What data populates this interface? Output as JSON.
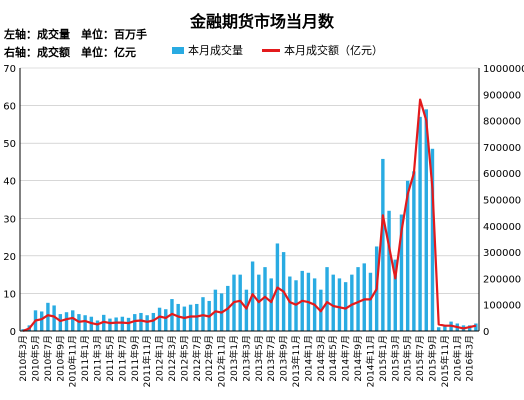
{
  "colors": {
    "bar": "#29abe2",
    "line": "#e31a1c",
    "grid": "#bfbfbf",
    "axis": "#000000"
  },
  "chart_data": {
    "type": "bar",
    "title": "金融期货市场当月数",
    "notes": [
      "左轴：成交量　单位：百万手",
      "右轴：成交额　单位：亿元"
    ],
    "legend_position": "top-right",
    "grid": true,
    "x_tick_labels": [
      "2010年3月",
      "2010年5月",
      "2010年7月",
      "2010年9月",
      "2010年11月",
      "2011年1月",
      "2011年3月",
      "2011年5月",
      "2011年7月",
      "2011年9月",
      "2011年11月",
      "2012年1月",
      "2012年3月",
      "2012年5月",
      "2012年7月",
      "2012年9月",
      "2012年11月",
      "2013年1月",
      "2013年3月",
      "2013年5月",
      "2013年7月",
      "2013年9月",
      "2013年11月",
      "2014年1月",
      "2014年3月",
      "2014年5月",
      "2014年7月",
      "2014年9月",
      "2014年11月",
      "2015年1月",
      "2015年3月",
      "2015年5月",
      "2015年7月",
      "2015年9月",
      "2015年11月",
      "2016年1月",
      "2016年3月"
    ],
    "y_left": {
      "min": 0,
      "max": 70,
      "ticks": [
        0,
        10,
        20,
        30,
        40,
        50,
        60,
        70
      ]
    },
    "y_right": {
      "min": 0,
      "max": 1000000,
      "ticks": [
        0,
        100000,
        200000,
        300000,
        400000,
        500000,
        600000,
        700000,
        800000,
        900000,
        1000000
      ]
    },
    "series": [
      {
        "name": "本月成交量",
        "type": "bar",
        "axis": "left",
        "values": [
          0.5,
          1.5,
          5.5,
          5.2,
          7.5,
          6.8,
          4.5,
          5.0,
          5.5,
          4.5,
          4.2,
          3.8,
          2.8,
          4.3,
          3.3,
          3.6,
          3.8,
          3.5,
          4.5,
          4.8,
          4.2,
          4.8,
          6.2,
          5.8,
          8.5,
          7.2,
          6.5,
          7.0,
          7.2,
          9.0,
          8.0,
          11.0,
          10.0,
          12.0,
          15.0,
          15.0,
          11.0,
          18.5,
          15.0,
          17.0,
          14.0,
          23.3,
          21.0,
          14.5,
          13.5,
          16.0,
          15.5,
          14.0,
          11.0,
          17.0,
          15.0,
          14.0,
          13.0,
          15.0,
          17.0,
          18.0,
          15.5,
          22.5,
          45.8,
          32.0,
          19.0,
          31.0,
          40.0,
          42.5,
          57.0,
          59.0,
          48.5,
          1.0,
          1.2,
          2.5,
          2.0,
          1.5,
          1.5,
          2.0
        ]
      },
      {
        "name": "本月成交额（亿元）",
        "type": "line",
        "axis": "right",
        "values": [
          0,
          10000,
          40000,
          45000,
          60000,
          55000,
          38000,
          45000,
          50000,
          35000,
          38000,
          30000,
          25000,
          35000,
          30000,
          32000,
          32000,
          30000,
          38000,
          40000,
          35000,
          40000,
          55000,
          50000,
          65000,
          55000,
          50000,
          55000,
          55000,
          60000,
          55000,
          75000,
          70000,
          85000,
          110000,
          115000,
          85000,
          140000,
          110000,
          130000,
          110000,
          165000,
          150000,
          110000,
          100000,
          115000,
          110000,
          100000,
          75000,
          110000,
          95000,
          90000,
          85000,
          100000,
          110000,
          120000,
          120000,
          160000,
          440000,
          320000,
          200000,
          380000,
          520000,
          600000,
          880000,
          800000,
          540000,
          25000,
          20000,
          20000,
          15000,
          10000,
          15000,
          20000
        ]
      }
    ]
  }
}
